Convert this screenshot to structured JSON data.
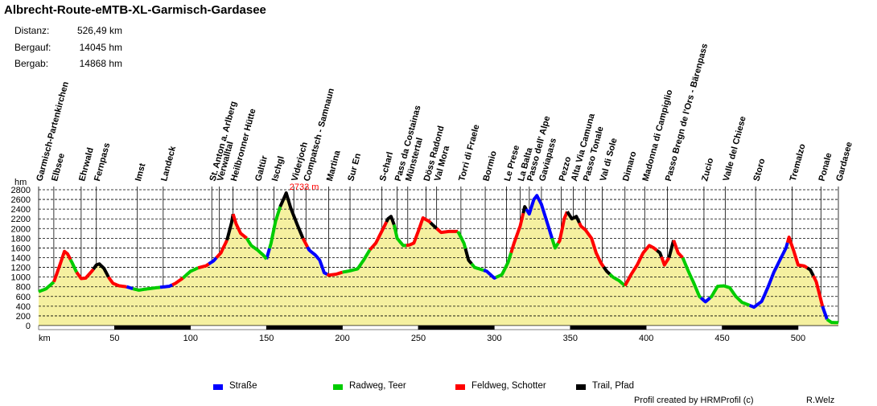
{
  "header": {
    "title": "Albrecht-Route-eMTB-XL-Garmisch-Gardasee",
    "stats": [
      {
        "label": "Distanz:",
        "value": "526,49 km"
      },
      {
        "label": "Bergauf:",
        "value": "14045 hm"
      },
      {
        "label": "Bergab:",
        "value": "14868 hm"
      }
    ]
  },
  "legend": [
    {
      "label": "Straße",
      "color": "#0000ff"
    },
    {
      "label": "Radweg, Teer",
      "color": "#00cc00"
    },
    {
      "label": "Feldweg, Schotter",
      "color": "#ff0000"
    },
    {
      "label": "Trail, Pfad",
      "color": "#000000"
    }
  ],
  "footer": {
    "credit": "Profil created by HRMProfil (c)",
    "author": "R.Welz"
  },
  "chart_data": {
    "type": "area",
    "title": "Albrecht-Route-eMTB-XL-Garmisch-Gardasee",
    "xlabel": "km",
    "ylabel": "hm",
    "xlim": [
      0,
      526.49
    ],
    "ylim": [
      0,
      2800
    ],
    "x_ticks": [
      0,
      50,
      100,
      150,
      200,
      250,
      300,
      350,
      400,
      450,
      500
    ],
    "x_tick_labels": [
      "km",
      "50",
      "100",
      "150",
      "200",
      "250",
      "300",
      "350",
      "400",
      "450",
      "500"
    ],
    "y_ticks": [
      0,
      200,
      400,
      600,
      800,
      1000,
      1200,
      1400,
      1600,
      1800,
      2000,
      2200,
      2400,
      2600,
      2800
    ],
    "max_label": "2733 m",
    "max_point": {
      "x": 163,
      "y": 2733
    },
    "grid": true,
    "fill_color": "#f5f0a0",
    "profile": [
      [
        0,
        700
      ],
      [
        5,
        760
      ],
      [
        10,
        900
      ],
      [
        14,
        1250
      ],
      [
        17,
        1530
      ],
      [
        19,
        1480
      ],
      [
        22,
        1300
      ],
      [
        25,
        1100
      ],
      [
        28,
        970
      ],
      [
        31,
        980
      ],
      [
        35,
        1120
      ],
      [
        38,
        1250
      ],
      [
        40,
        1270
      ],
      [
        43,
        1180
      ],
      [
        46,
        1000
      ],
      [
        49,
        870
      ],
      [
        53,
        820
      ],
      [
        58,
        800
      ],
      [
        62,
        760
      ],
      [
        66,
        730
      ],
      [
        70,
        750
      ],
      [
        75,
        770
      ],
      [
        80,
        790
      ],
      [
        86,
        810
      ],
      [
        90,
        870
      ],
      [
        95,
        980
      ],
      [
        100,
        1120
      ],
      [
        105,
        1190
      ],
      [
        110,
        1230
      ],
      [
        115,
        1330
      ],
      [
        120,
        1500
      ],
      [
        124,
        1760
      ],
      [
        127,
        2120
      ],
      [
        128,
        2300
      ],
      [
        130,
        2100
      ],
      [
        133,
        1900
      ],
      [
        137,
        1800
      ],
      [
        140,
        1650
      ],
      [
        144,
        1560
      ],
      [
        148,
        1450
      ],
      [
        150,
        1370
      ],
      [
        153,
        1700
      ],
      [
        156,
        2150
      ],
      [
        159,
        2450
      ],
      [
        163,
        2733
      ],
      [
        166,
        2420
      ],
      [
        170,
        2100
      ],
      [
        174,
        1800
      ],
      [
        178,
        1560
      ],
      [
        182,
        1460
      ],
      [
        185,
        1350
      ],
      [
        188,
        1090
      ],
      [
        191,
        1040
      ],
      [
        196,
        1060
      ],
      [
        200,
        1100
      ],
      [
        205,
        1130
      ],
      [
        210,
        1170
      ],
      [
        214,
        1350
      ],
      [
        218,
        1560
      ],
      [
        222,
        1700
      ],
      [
        226,
        1950
      ],
      [
        230,
        2200
      ],
      [
        232,
        2250
      ],
      [
        234,
        2080
      ],
      [
        236,
        1800
      ],
      [
        240,
        1650
      ],
      [
        244,
        1660
      ],
      [
        247,
        1700
      ],
      [
        250,
        1950
      ],
      [
        253,
        2220
      ],
      [
        257,
        2150
      ],
      [
        261,
        2030
      ],
      [
        265,
        1920
      ],
      [
        270,
        1940
      ],
      [
        276,
        1940
      ],
      [
        280,
        1700
      ],
      [
        283,
        1350
      ],
      [
        287,
        1200
      ],
      [
        291,
        1160
      ],
      [
        295,
        1120
      ],
      [
        300,
        980
      ],
      [
        305,
        1050
      ],
      [
        309,
        1300
      ],
      [
        313,
        1700
      ],
      [
        317,
        2050
      ],
      [
        320,
        2450
      ],
      [
        323,
        2300
      ],
      [
        326,
        2600
      ],
      [
        328,
        2680
      ],
      [
        331,
        2500
      ],
      [
        334,
        2200
      ],
      [
        337,
        1900
      ],
      [
        340,
        1600
      ],
      [
        343,
        1750
      ],
      [
        346,
        2200
      ],
      [
        348,
        2350
      ],
      [
        351,
        2200
      ],
      [
        354,
        2250
      ],
      [
        357,
        2050
      ],
      [
        360,
        1970
      ],
      [
        364,
        1800
      ],
      [
        367,
        1500
      ],
      [
        370,
        1300
      ],
      [
        374,
        1120
      ],
      [
        378,
        1000
      ],
      [
        382,
        930
      ],
      [
        386,
        820
      ],
      [
        390,
        1050
      ],
      [
        394,
        1250
      ],
      [
        398,
        1500
      ],
      [
        402,
        1650
      ],
      [
        405,
        1600
      ],
      [
        409,
        1500
      ],
      [
        412,
        1250
      ],
      [
        415,
        1400
      ],
      [
        418,
        1760
      ],
      [
        421,
        1500
      ],
      [
        424,
        1400
      ],
      [
        428,
        1100
      ],
      [
        431,
        900
      ],
      [
        435,
        600
      ],
      [
        439,
        490
      ],
      [
        443,
        600
      ],
      [
        447,
        810
      ],
      [
        451,
        820
      ],
      [
        455,
        780
      ],
      [
        459,
        600
      ],
      [
        463,
        480
      ],
      [
        467,
        430
      ],
      [
        471,
        380
      ],
      [
        476,
        500
      ],
      [
        480,
        780
      ],
      [
        484,
        1100
      ],
      [
        488,
        1350
      ],
      [
        492,
        1600
      ],
      [
        494,
        1820
      ],
      [
        497,
        1550
      ],
      [
        500,
        1250
      ],
      [
        504,
        1230
      ],
      [
        508,
        1150
      ],
      [
        512,
        900
      ],
      [
        516,
        400
      ],
      [
        519,
        130
      ],
      [
        522,
        65
      ],
      [
        526.49,
        60
      ]
    ],
    "segments": [
      {
        "type": "Straße",
        "from": 150,
        "to": 152
      },
      {
        "type": "Radweg, Teer",
        "from": 0,
        "to": 10
      },
      {
        "type": "Feldweg, Schotter",
        "from": 10,
        "to": 21
      },
      {
        "type": "Radweg, Teer",
        "from": 21,
        "to": 25
      },
      {
        "type": "Feldweg, Schotter",
        "from": 25,
        "to": 36
      },
      {
        "type": "Trail, Pfad",
        "from": 36,
        "to": 46
      },
      {
        "type": "Feldweg, Schotter",
        "from": 46,
        "to": 58
      },
      {
        "type": "Straße",
        "from": 58,
        "to": 62
      },
      {
        "type": "Radweg, Teer",
        "from": 62,
        "to": 80
      },
      {
        "type": "Straße",
        "from": 80,
        "to": 88
      },
      {
        "type": "Feldweg, Schotter",
        "from": 88,
        "to": 95
      },
      {
        "type": "Radweg, Teer",
        "from": 95,
        "to": 105
      },
      {
        "type": "Feldweg, Schotter",
        "from": 105,
        "to": 112
      },
      {
        "type": "Straße",
        "from": 112,
        "to": 117
      },
      {
        "type": "Feldweg, Schotter",
        "from": 117,
        "to": 124
      },
      {
        "type": "Trail, Pfad",
        "from": 124,
        "to": 128
      },
      {
        "type": "Feldweg, Schotter",
        "from": 128,
        "to": 137
      },
      {
        "type": "Radweg, Teer",
        "from": 137,
        "to": 150
      },
      {
        "type": "Radweg, Teer",
        "from": 152,
        "to": 159
      },
      {
        "type": "Trail, Pfad",
        "from": 159,
        "to": 174
      },
      {
        "type": "Feldweg, Schotter",
        "from": 174,
        "to": 177
      },
      {
        "type": "Straße",
        "from": 177,
        "to": 190
      },
      {
        "type": "Feldweg, Schotter",
        "from": 190,
        "to": 200
      },
      {
        "type": "Radweg, Teer",
        "from": 200,
        "to": 218
      },
      {
        "type": "Feldweg, Schotter",
        "from": 218,
        "to": 229
      },
      {
        "type": "Trail, Pfad",
        "from": 229,
        "to": 234
      },
      {
        "type": "Radweg, Teer",
        "from": 234,
        "to": 242
      },
      {
        "type": "Feldweg, Schotter",
        "from": 242,
        "to": 258
      },
      {
        "type": "Trail, Pfad",
        "from": 258,
        "to": 262
      },
      {
        "type": "Feldweg, Schotter",
        "from": 262,
        "to": 276
      },
      {
        "type": "Radweg, Teer",
        "from": 276,
        "to": 281
      },
      {
        "type": "Trail, Pfad",
        "from": 281,
        "to": 285
      },
      {
        "type": "Radweg, Teer",
        "from": 285,
        "to": 293
      },
      {
        "type": "Straße",
        "from": 293,
        "to": 301
      },
      {
        "type": "Radweg, Teer",
        "from": 301,
        "to": 311
      },
      {
        "type": "Feldweg, Schotter",
        "from": 311,
        "to": 319
      },
      {
        "type": "Trail, Pfad",
        "from": 319,
        "to": 321
      },
      {
        "type": "Straße",
        "from": 321,
        "to": 338
      },
      {
        "type": "Radweg, Teer",
        "from": 338,
        "to": 342
      },
      {
        "type": "Feldweg, Schotter",
        "from": 342,
        "to": 348
      },
      {
        "type": "Trail, Pfad",
        "from": 348,
        "to": 356
      },
      {
        "type": "Feldweg, Schotter",
        "from": 356,
        "to": 372
      },
      {
        "type": "Trail, Pfad",
        "from": 372,
        "to": 376
      },
      {
        "type": "Radweg, Teer",
        "from": 376,
        "to": 386
      },
      {
        "type": "Feldweg, Schotter",
        "from": 386,
        "to": 407
      },
      {
        "type": "Trail, Pfad",
        "from": 407,
        "to": 410
      },
      {
        "type": "Feldweg, Schotter",
        "from": 410,
        "to": 415
      },
      {
        "type": "Trail, Pfad",
        "from": 415,
        "to": 418
      },
      {
        "type": "Feldweg, Schotter",
        "from": 418,
        "to": 424
      },
      {
        "type": "Radweg, Teer",
        "from": 424,
        "to": 436
      },
      {
        "type": "Straße",
        "from": 436,
        "to": 442
      },
      {
        "type": "Radweg, Teer",
        "from": 442,
        "to": 468
      },
      {
        "type": "Straße",
        "from": 468,
        "to": 493
      },
      {
        "type": "Feldweg, Schotter",
        "from": 493,
        "to": 506
      },
      {
        "type": "Trail, Pfad",
        "from": 506,
        "to": 510
      },
      {
        "type": "Feldweg, Schotter",
        "from": 510,
        "to": 516
      },
      {
        "type": "Straße",
        "from": 516,
        "to": 519
      },
      {
        "type": "Radweg, Teer",
        "from": 519,
        "to": 526.49
      }
    ],
    "waypoints": [
      {
        "name": "Garmisch-Partenkirchen",
        "x": 0
      },
      {
        "name": "Elbsee",
        "x": 10
      },
      {
        "name": "Ehrwald",
        "x": 28
      },
      {
        "name": "Fernpass",
        "x": 38
      },
      {
        "name": "Imst",
        "x": 65
      },
      {
        "name": "Landeck",
        "x": 82
      },
      {
        "name": "St. Anton a. Arlberg",
        "x": 114
      },
      {
        "name": "Verwalltal",
        "x": 119
      },
      {
        "name": "Heilbronner Hütte",
        "x": 128
      },
      {
        "name": "Galtür",
        "x": 144
      },
      {
        "name": "Ischgl",
        "x": 155
      },
      {
        "name": "Viderjoch",
        "x": 168
      },
      {
        "name": "Compatsch - Samnaun",
        "x": 176
      },
      {
        "name": "Martina",
        "x": 191
      },
      {
        "name": "Sur En",
        "x": 205
      },
      {
        "name": "S-charl",
        "x": 226
      },
      {
        "name": "Pass da Costainas",
        "x": 236
      },
      {
        "name": "Münstertal",
        "x": 243
      },
      {
        "name": "Döss Radond",
        "x": 255
      },
      {
        "name": "Val Mora",
        "x": 262
      },
      {
        "name": "Torri di Fraele",
        "x": 278
      },
      {
        "name": "Bormio",
        "x": 294
      },
      {
        "name": "Le Prese",
        "x": 308
      },
      {
        "name": "La Balta",
        "x": 317
      },
      {
        "name": "Passo dell' Alpe",
        "x": 323
      },
      {
        "name": "Gaviapass",
        "x": 331
      },
      {
        "name": "Pezzo",
        "x": 344
      },
      {
        "name": "Alta Via Camuna",
        "x": 352
      },
      {
        "name": "Passo Tonale",
        "x": 360
      },
      {
        "name": "Val di Sole",
        "x": 371
      },
      {
        "name": "Dimaro",
        "x": 386
      },
      {
        "name": "Madonna di Campiglio",
        "x": 399
      },
      {
        "name": "Passo Bregn de l'Ors - Bärenpass",
        "x": 414
      },
      {
        "name": "Zucio",
        "x": 438
      },
      {
        "name": "Valle del Chiese",
        "x": 452
      },
      {
        "name": "Storo",
        "x": 472
      },
      {
        "name": "Tremalzo",
        "x": 496
      },
      {
        "name": "Ponale",
        "x": 515
      },
      {
        "name": "Gardasee",
        "x": 526.49
      }
    ]
  }
}
